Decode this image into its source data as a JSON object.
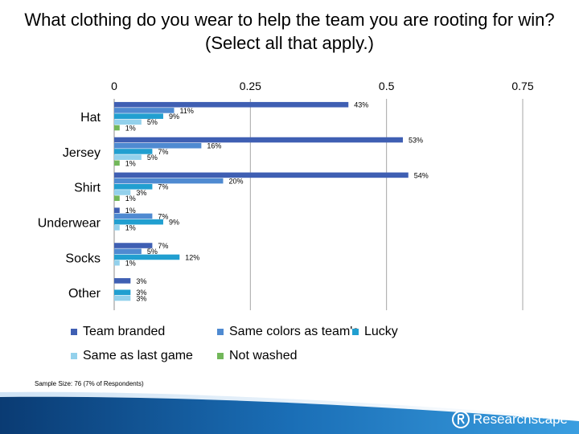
{
  "title": "What clothing do you wear to help the team you are rooting for win? (Select all that apply.)",
  "footnote": "Sample Size: 76 (7% of Respondents)",
  "brand": "Researchscape",
  "chart_data": {
    "type": "bar",
    "orientation": "horizontal",
    "categories": [
      "Hat",
      "Jersey",
      "Shirt",
      "Underwear",
      "Socks",
      "Other"
    ],
    "xlim": [
      0,
      0.75
    ],
    "xticks": [
      0,
      0.25,
      0.5,
      0.75
    ],
    "xtick_labels": [
      "0",
      "0.25",
      "0.5",
      "0.75"
    ],
    "grid": true,
    "legend_position": "bottom",
    "series": [
      {
        "name": "Team branded",
        "color": "#3f5fb3",
        "values": [
          0.43,
          0.53,
          0.54,
          0.01,
          0.07,
          0.03
        ],
        "labels": [
          "43%",
          "53%",
          "54%",
          "1%",
          "7%",
          "3%"
        ]
      },
      {
        "name": "Same colors as team's",
        "color": "#4f8ad1",
        "values": [
          0.11,
          0.16,
          0.2,
          0.07,
          0.05,
          null
        ],
        "labels": [
          "11%",
          "16%",
          "20%",
          "7%",
          "5%",
          null
        ]
      },
      {
        "name": "Lucky",
        "color": "#219fd0",
        "values": [
          0.09,
          0.07,
          0.07,
          0.09,
          0.12,
          0.03
        ],
        "labels": [
          "9%",
          "7%",
          "7%",
          "9%",
          "12%",
          "3%"
        ]
      },
      {
        "name": "Same as last game",
        "color": "#93d1ec",
        "values": [
          0.05,
          0.05,
          0.03,
          0.01,
          0.01,
          0.03
        ],
        "labels": [
          "5%",
          "5%",
          "3%",
          "1%",
          "1%",
          "3%"
        ]
      },
      {
        "name": "Not washed",
        "color": "#72b75a",
        "values": [
          0.01,
          0.01,
          0.01,
          null,
          null,
          null
        ],
        "labels": [
          "1%",
          "1%",
          "1%",
          null,
          null,
          null
        ]
      }
    ]
  }
}
